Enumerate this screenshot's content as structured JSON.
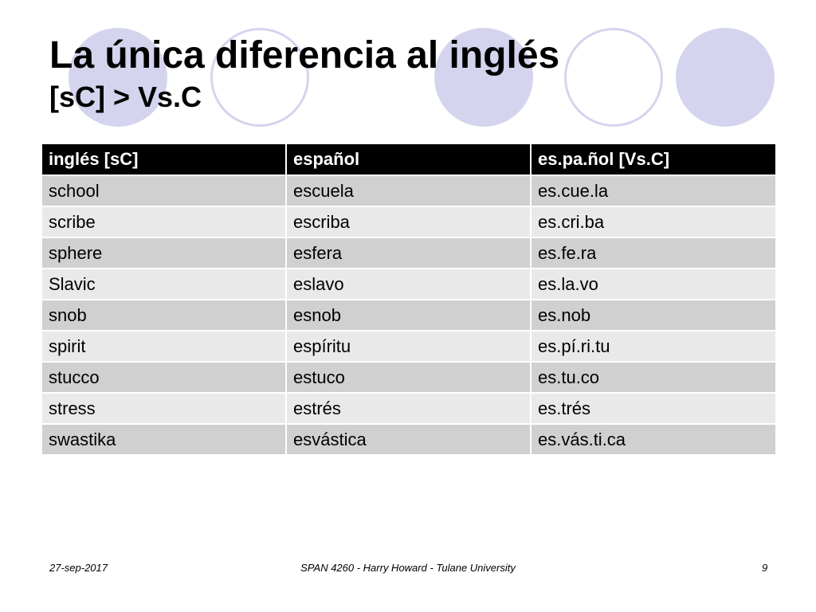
{
  "title": {
    "line1": "La única diferencia al inglés",
    "line2": "[sC] > Vs.C"
  },
  "table": {
    "headers": [
      "inglés [sC]",
      "español",
      "es.pa.ñol [Vs.C]"
    ],
    "rows": [
      [
        "school",
        "escuela",
        "es.cue.la"
      ],
      [
        "scribe",
        "escriba",
        "es.cri.ba"
      ],
      [
        "sphere",
        "esfera",
        "es.fe.ra"
      ],
      [
        "Slavic",
        "eslavo",
        "es.la.vo"
      ],
      [
        "snob",
        "esnob",
        "es.nob"
      ],
      [
        "spirit",
        "espíritu",
        "es.pí.ri.tu"
      ],
      [
        "stucco",
        "estuco",
        "es.tu.co"
      ],
      [
        "stress",
        "estrés",
        "es.trés"
      ],
      [
        "swastika",
        "esvástica",
        "es.vás.ti.ca"
      ]
    ]
  },
  "footer": {
    "date": "27-sep-2017",
    "center": "SPAN 4260 - Harry Howard - Tulane University",
    "page": "9"
  },
  "colors": {
    "circle": "#d4d4ee",
    "header_bg": "#000000",
    "row_dark": "#d0d0d0",
    "row_light": "#e9e9e9"
  }
}
